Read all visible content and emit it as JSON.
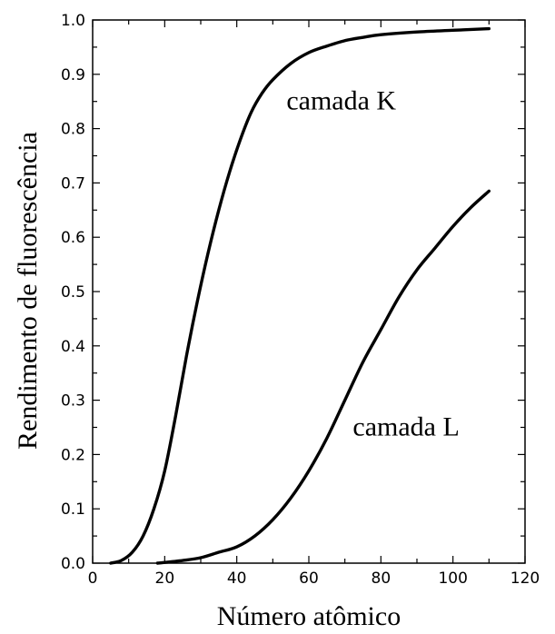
{
  "chart_data": {
    "type": "line",
    "title": "",
    "xlabel": "Número atômico",
    "ylabel": "Rendimento de fluorescência",
    "xlim": [
      0,
      120
    ],
    "ylim": [
      0.0,
      1.0
    ],
    "x_ticks": [
      0,
      20,
      40,
      60,
      80,
      100,
      120
    ],
    "y_ticks": [
      0.0,
      0.1,
      0.2,
      0.3,
      0.4,
      0.5,
      0.6,
      0.7,
      0.8,
      0.9,
      1.0
    ],
    "x_tick_labels": [
      "0",
      "20",
      "40",
      "60",
      "80",
      "100",
      "120"
    ],
    "y_tick_labels": [
      "0.0",
      "0.1",
      "0.2",
      "0.3",
      "0.4",
      "0.5",
      "0.6",
      "0.7",
      "0.8",
      "0.9",
      "1.0"
    ],
    "grid": false,
    "series_color": "#000000",
    "series": [
      {
        "name": "camada K",
        "x": [
          5,
          8,
          11,
          14,
          17,
          20,
          23,
          26,
          29,
          32,
          35,
          38,
          41,
          44,
          47,
          50,
          55,
          60,
          65,
          70,
          75,
          80,
          90,
          100,
          110
        ],
        "y": [
          0.0,
          0.005,
          0.02,
          0.05,
          0.1,
          0.17,
          0.27,
          0.38,
          0.48,
          0.57,
          0.65,
          0.72,
          0.78,
          0.83,
          0.865,
          0.89,
          0.92,
          0.94,
          0.952,
          0.962,
          0.968,
          0.973,
          0.978,
          0.981,
          0.984
        ]
      },
      {
        "name": "camada L",
        "x": [
          18,
          25,
          30,
          35,
          40,
          45,
          50,
          55,
          60,
          65,
          70,
          75,
          80,
          85,
          90,
          95,
          100,
          105,
          110
        ],
        "y": [
          0.0,
          0.005,
          0.01,
          0.02,
          0.03,
          0.05,
          0.08,
          0.12,
          0.17,
          0.23,
          0.3,
          0.37,
          0.43,
          0.49,
          0.54,
          0.58,
          0.62,
          0.655,
          0.685
        ]
      }
    ],
    "annotations": [
      {
        "text": "camada K",
        "x": 69,
        "y": 0.835
      },
      {
        "text": "camada L",
        "x": 87,
        "y": 0.235
      }
    ]
  }
}
